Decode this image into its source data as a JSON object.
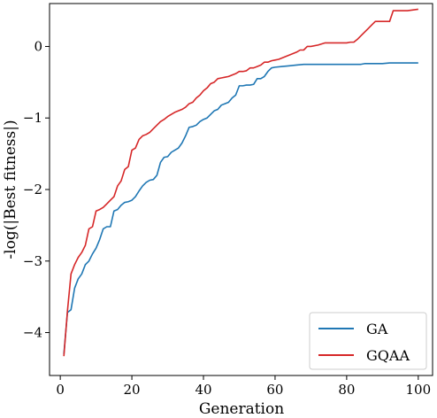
{
  "chart_data": {
    "type": "line",
    "title": "",
    "xlabel": "Generation",
    "ylabel": "-log(|Best fitness|)",
    "xlim": [
      -3,
      104
    ],
    "ylim": [
      -4.6,
      0.6
    ],
    "xticks": [
      0,
      20,
      40,
      60,
      80,
      100
    ],
    "yticks": [
      -4,
      -3,
      -2,
      -1,
      0
    ],
    "ytick_labels": [
      "−4",
      "−3",
      "−2",
      "−1",
      "0"
    ],
    "grid": false,
    "legend_position": "lower-right",
    "series": [
      {
        "name": "GA",
        "color": "#1f77b4",
        "points": [
          [
            1,
            -4.3
          ],
          [
            2,
            -3.72
          ],
          [
            3,
            -3.68
          ],
          [
            4,
            -3.38
          ],
          [
            5,
            -3.25
          ],
          [
            6,
            -3.18
          ],
          [
            7,
            -3.05
          ],
          [
            8,
            -3.0
          ],
          [
            9,
            -2.9
          ],
          [
            10,
            -2.82
          ],
          [
            11,
            -2.7
          ],
          [
            12,
            -2.55
          ],
          [
            13,
            -2.52
          ],
          [
            14,
            -2.52
          ],
          [
            15,
            -2.3
          ],
          [
            16,
            -2.28
          ],
          [
            17,
            -2.22
          ],
          [
            18,
            -2.18
          ],
          [
            19,
            -2.17
          ],
          [
            20,
            -2.15
          ],
          [
            21,
            -2.1
          ],
          [
            22,
            -2.02
          ],
          [
            23,
            -1.95
          ],
          [
            24,
            -1.9
          ],
          [
            25,
            -1.87
          ],
          [
            26,
            -1.86
          ],
          [
            27,
            -1.8
          ],
          [
            28,
            -1.62
          ],
          [
            29,
            -1.55
          ],
          [
            30,
            -1.54
          ],
          [
            31,
            -1.48
          ],
          [
            32,
            -1.45
          ],
          [
            33,
            -1.42
          ],
          [
            34,
            -1.35
          ],
          [
            35,
            -1.25
          ],
          [
            36,
            -1.13
          ],
          [
            37,
            -1.12
          ],
          [
            38,
            -1.1
          ],
          [
            39,
            -1.05
          ],
          [
            40,
            -1.02
          ],
          [
            41,
            -1.0
          ],
          [
            42,
            -0.95
          ],
          [
            43,
            -0.9
          ],
          [
            44,
            -0.88
          ],
          [
            45,
            -0.82
          ],
          [
            46,
            -0.8
          ],
          [
            47,
            -0.78
          ],
          [
            48,
            -0.72
          ],
          [
            49,
            -0.68
          ],
          [
            50,
            -0.55
          ],
          [
            51,
            -0.55
          ],
          [
            52,
            -0.54
          ],
          [
            53,
            -0.54
          ],
          [
            54,
            -0.53
          ],
          [
            55,
            -0.45
          ],
          [
            56,
            -0.45
          ],
          [
            57,
            -0.42
          ],
          [
            58,
            -0.35
          ],
          [
            59,
            -0.3
          ],
          [
            60,
            -0.29
          ],
          [
            62,
            -0.28
          ],
          [
            64,
            -0.27
          ],
          [
            66,
            -0.26
          ],
          [
            68,
            -0.25
          ],
          [
            70,
            -0.25
          ],
          [
            75,
            -0.25
          ],
          [
            80,
            -0.25
          ],
          [
            84,
            -0.25
          ],
          [
            85,
            -0.24
          ],
          [
            90,
            -0.24
          ],
          [
            92,
            -0.23
          ],
          [
            95,
            -0.23
          ],
          [
            100,
            -0.23
          ]
        ]
      },
      {
        "name": "GQAA",
        "color": "#d62728",
        "points": [
          [
            1,
            -4.33
          ],
          [
            2,
            -3.7
          ],
          [
            3,
            -3.18
          ],
          [
            4,
            -3.05
          ],
          [
            5,
            -2.95
          ],
          [
            6,
            -2.88
          ],
          [
            7,
            -2.78
          ],
          [
            8,
            -2.55
          ],
          [
            9,
            -2.52
          ],
          [
            10,
            -2.3
          ],
          [
            11,
            -2.28
          ],
          [
            12,
            -2.25
          ],
          [
            13,
            -2.2
          ],
          [
            14,
            -2.15
          ],
          [
            15,
            -2.1
          ],
          [
            16,
            -1.95
          ],
          [
            17,
            -1.88
          ],
          [
            18,
            -1.72
          ],
          [
            19,
            -1.68
          ],
          [
            20,
            -1.45
          ],
          [
            21,
            -1.42
          ],
          [
            22,
            -1.3
          ],
          [
            23,
            -1.25
          ],
          [
            24,
            -1.23
          ],
          [
            25,
            -1.2
          ],
          [
            26,
            -1.15
          ],
          [
            27,
            -1.1
          ],
          [
            28,
            -1.05
          ],
          [
            29,
            -1.02
          ],
          [
            30,
            -0.98
          ],
          [
            31,
            -0.95
          ],
          [
            32,
            -0.92
          ],
          [
            33,
            -0.9
          ],
          [
            34,
            -0.88
          ],
          [
            35,
            -0.85
          ],
          [
            36,
            -0.8
          ],
          [
            37,
            -0.78
          ],
          [
            38,
            -0.72
          ],
          [
            39,
            -0.68
          ],
          [
            40,
            -0.62
          ],
          [
            41,
            -0.58
          ],
          [
            42,
            -0.52
          ],
          [
            43,
            -0.5
          ],
          [
            44,
            -0.45
          ],
          [
            45,
            -0.44
          ],
          [
            46,
            -0.43
          ],
          [
            47,
            -0.42
          ],
          [
            48,
            -0.4
          ],
          [
            49,
            -0.38
          ],
          [
            50,
            -0.35
          ],
          [
            51,
            -0.35
          ],
          [
            52,
            -0.34
          ],
          [
            53,
            -0.3
          ],
          [
            54,
            -0.3
          ],
          [
            55,
            -0.28
          ],
          [
            56,
            -0.26
          ],
          [
            57,
            -0.22
          ],
          [
            58,
            -0.22
          ],
          [
            59,
            -0.2
          ],
          [
            60,
            -0.19
          ],
          [
            61,
            -0.18
          ],
          [
            62,
            -0.16
          ],
          [
            63,
            -0.14
          ],
          [
            64,
            -0.12
          ],
          [
            65,
            -0.1
          ],
          [
            66,
            -0.08
          ],
          [
            67,
            -0.05
          ],
          [
            68,
            -0.05
          ],
          [
            69,
            0.0
          ],
          [
            70,
            0.0
          ],
          [
            72,
            0.02
          ],
          [
            74,
            0.05
          ],
          [
            76,
            0.05
          ],
          [
            78,
            0.05
          ],
          [
            80,
            0.05
          ],
          [
            81,
            0.06
          ],
          [
            82,
            0.06
          ],
          [
            83,
            0.1
          ],
          [
            84,
            0.15
          ],
          [
            85,
            0.2
          ],
          [
            86,
            0.25
          ],
          [
            87,
            0.3
          ],
          [
            88,
            0.35
          ],
          [
            89,
            0.35
          ],
          [
            90,
            0.35
          ],
          [
            92,
            0.35
          ],
          [
            93,
            0.5
          ],
          [
            95,
            0.5
          ],
          [
            97,
            0.5
          ],
          [
            100,
            0.52
          ]
        ]
      }
    ]
  }
}
